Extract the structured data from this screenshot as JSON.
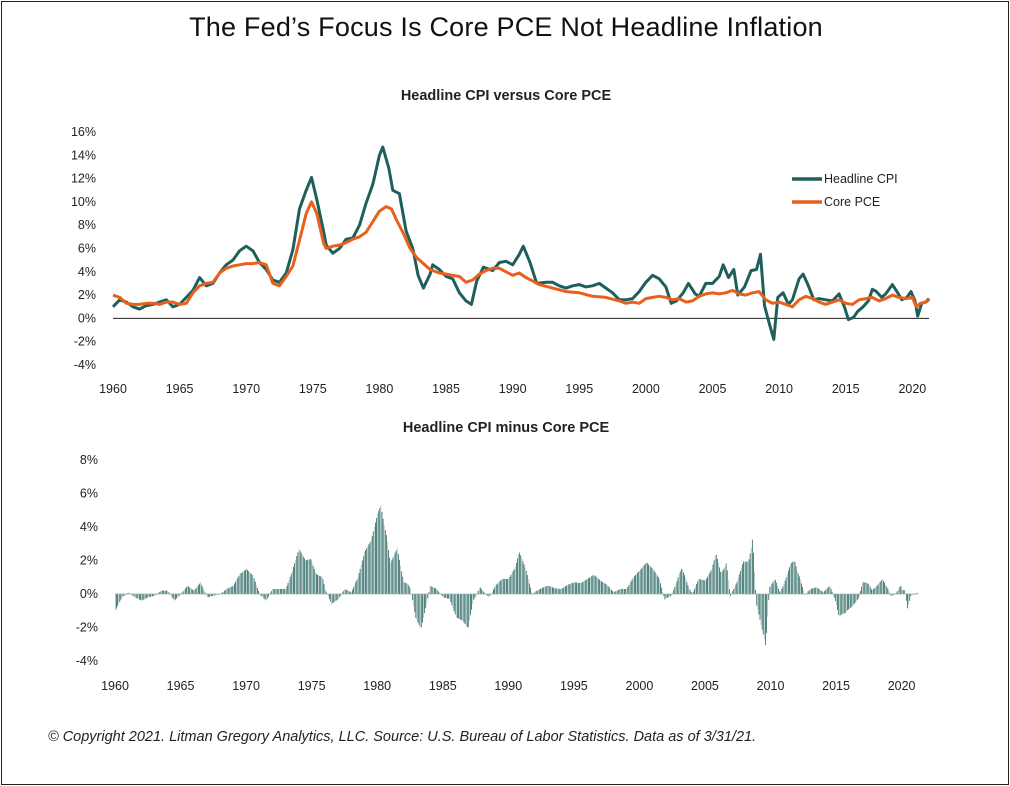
{
  "page": {
    "title": "The Fed’s Focus Is Core PCE Not Headline Inflation",
    "footer": "© Copyright 2021. Litman Gregory Analytics, LLC. Source: U.S. Bureau of Labor Statistics. Data as of 3/31/21."
  },
  "colors": {
    "headline": "#1f5f5b",
    "core": "#e8601c",
    "bars": "#2e6b66",
    "bars_light": "#a9c3c0"
  },
  "chart_data": [
    {
      "type": "line",
      "title": "Headline CPI versus Core PCE",
      "xlabel": "",
      "ylabel": "",
      "xlim": [
        1960,
        2021.25
      ],
      "ylim": [
        -4,
        16
      ],
      "yticks": [
        -4,
        -2,
        0,
        2,
        4,
        6,
        8,
        10,
        12,
        14,
        16
      ],
      "ytick_labels": [
        "-4%",
        "-2%",
        "0%",
        "2%",
        "4%",
        "6%",
        "8%",
        "10%",
        "12%",
        "14%",
        "16%"
      ],
      "xticks": [
        1960,
        1965,
        1970,
        1975,
        1980,
        1985,
        1990,
        1995,
        2000,
        2005,
        2010,
        2015,
        2020
      ],
      "legend_position": "top-right",
      "series": [
        {
          "name": "Headline CPI",
          "points": [
            [
              1960,
              1.0
            ],
            [
              1960.5,
              1.6
            ],
            [
              1961,
              1.4
            ],
            [
              1961.5,
              1.0
            ],
            [
              1962,
              0.8
            ],
            [
              1962.5,
              1.1
            ],
            [
              1963,
              1.2
            ],
            [
              1963.5,
              1.4
            ],
            [
              1964,
              1.6
            ],
            [
              1964.5,
              1.0
            ],
            [
              1965,
              1.2
            ],
            [
              1965.5,
              1.8
            ],
            [
              1966,
              2.4
            ],
            [
              1966.5,
              3.5
            ],
            [
              1967,
              2.8
            ],
            [
              1967.5,
              3.0
            ],
            [
              1968,
              3.9
            ],
            [
              1968.5,
              4.6
            ],
            [
              1969,
              5.0
            ],
            [
              1969.5,
              5.8
            ],
            [
              1970,
              6.2
            ],
            [
              1970.5,
              5.8
            ],
            [
              1971,
              4.8
            ],
            [
              1971.5,
              4.2
            ],
            [
              1972,
              3.3
            ],
            [
              1972.5,
              3.1
            ],
            [
              1973,
              3.9
            ],
            [
              1973.5,
              5.9
            ],
            [
              1974,
              9.4
            ],
            [
              1974.5,
              11.0
            ],
            [
              1974.9,
              12.1
            ],
            [
              1975.3,
              10.2
            ],
            [
              1975.8,
              7.5
            ],
            [
              1976,
              6.3
            ],
            [
              1976.5,
              5.6
            ],
            [
              1977,
              6.0
            ],
            [
              1977.5,
              6.8
            ],
            [
              1978,
              6.9
            ],
            [
              1978.5,
              8.0
            ],
            [
              1979,
              9.9
            ],
            [
              1979.5,
              11.5
            ],
            [
              1980,
              14.0
            ],
            [
              1980.25,
              14.7
            ],
            [
              1980.7,
              12.9
            ],
            [
              1981,
              11.0
            ],
            [
              1981.5,
              10.7
            ],
            [
              1982,
              7.5
            ],
            [
              1982.5,
              6.0
            ],
            [
              1982.9,
              3.7
            ],
            [
              1983.3,
              2.6
            ],
            [
              1983.8,
              3.8
            ],
            [
              1984,
              4.6
            ],
            [
              1984.5,
              4.2
            ],
            [
              1985,
              3.6
            ],
            [
              1985.5,
              3.4
            ],
            [
              1986,
              2.2
            ],
            [
              1986.5,
              1.5
            ],
            [
              1986.9,
              1.2
            ],
            [
              1987.3,
              3.2
            ],
            [
              1987.8,
              4.4
            ],
            [
              1988.5,
              4.1
            ],
            [
              1989,
              4.8
            ],
            [
              1989.5,
              4.9
            ],
            [
              1990,
              4.6
            ],
            [
              1990.5,
              5.5
            ],
            [
              1990.8,
              6.2
            ],
            [
              1991.3,
              4.8
            ],
            [
              1991.8,
              3.0
            ],
            [
              1992.5,
              3.1
            ],
            [
              1993,
              3.1
            ],
            [
              1993.5,
              2.8
            ],
            [
              1994,
              2.6
            ],
            [
              1994.5,
              2.8
            ],
            [
              1995,
              2.9
            ],
            [
              1995.5,
              2.7
            ],
            [
              1996,
              2.8
            ],
            [
              1996.5,
              3.0
            ],
            [
              1997,
              2.6
            ],
            [
              1997.5,
              2.2
            ],
            [
              1998,
              1.6
            ],
            [
              1998.5,
              1.6
            ],
            [
              1999,
              1.7
            ],
            [
              1999.5,
              2.3
            ],
            [
              2000,
              3.1
            ],
            [
              2000.5,
              3.7
            ],
            [
              2001,
              3.4
            ],
            [
              2001.5,
              2.7
            ],
            [
              2001.9,
              1.3
            ],
            [
              2002.3,
              1.5
            ],
            [
              2002.8,
              2.2
            ],
            [
              2003.2,
              3.0
            ],
            [
              2003.7,
              2.1
            ],
            [
              2004,
              1.9
            ],
            [
              2004.5,
              3.0
            ],
            [
              2005,
              3.0
            ],
            [
              2005.5,
              3.6
            ],
            [
              2005.8,
              4.6
            ],
            [
              2006.2,
              3.5
            ],
            [
              2006.6,
              4.2
            ],
            [
              2006.9,
              2.0
            ],
            [
              2007.4,
              2.7
            ],
            [
              2007.9,
              4.1
            ],
            [
              2008.3,
              4.2
            ],
            [
              2008.6,
              5.5
            ],
            [
              2008.9,
              1.1
            ],
            [
              2009.3,
              -0.6
            ],
            [
              2009.6,
              -1.8
            ],
            [
              2009.9,
              1.8
            ],
            [
              2010.3,
              2.2
            ],
            [
              2010.7,
              1.2
            ],
            [
              2011,
              1.6
            ],
            [
              2011.5,
              3.4
            ],
            [
              2011.8,
              3.8
            ],
            [
              2012.2,
              2.8
            ],
            [
              2012.6,
              1.6
            ],
            [
              2013,
              1.7
            ],
            [
              2013.5,
              1.6
            ],
            [
              2014,
              1.5
            ],
            [
              2014.5,
              2.1
            ],
            [
              2014.9,
              1.0
            ],
            [
              2015.2,
              -0.1
            ],
            [
              2015.6,
              0.1
            ],
            [
              2015.9,
              0.6
            ],
            [
              2016.3,
              1.0
            ],
            [
              2016.7,
              1.5
            ],
            [
              2017,
              2.5
            ],
            [
              2017.3,
              2.3
            ],
            [
              2017.7,
              1.8
            ],
            [
              2018,
              2.1
            ],
            [
              2018.5,
              2.9
            ],
            [
              2018.9,
              2.2
            ],
            [
              2019.2,
              1.6
            ],
            [
              2019.6,
              1.8
            ],
            [
              2019.9,
              2.3
            ],
            [
              2020.2,
              1.5
            ],
            [
              2020.4,
              0.2
            ],
            [
              2020.7,
              1.3
            ],
            [
              2021,
              1.4
            ],
            [
              2021.25,
              1.7
            ]
          ]
        },
        {
          "name": "Core PCE",
          "points": [
            [
              1960,
              2.0
            ],
            [
              1960.5,
              1.8
            ],
            [
              1961,
              1.3
            ],
            [
              1961.5,
              1.2
            ],
            [
              1962,
              1.2
            ],
            [
              1962.5,
              1.3
            ],
            [
              1963,
              1.3
            ],
            [
              1963.5,
              1.2
            ],
            [
              1964,
              1.4
            ],
            [
              1964.5,
              1.4
            ],
            [
              1965,
              1.2
            ],
            [
              1965.5,
              1.3
            ],
            [
              1966,
              2.2
            ],
            [
              1966.5,
              2.8
            ],
            [
              1967,
              3.0
            ],
            [
              1967.5,
              3.1
            ],
            [
              1968,
              3.9
            ],
            [
              1968.5,
              4.3
            ],
            [
              1969,
              4.5
            ],
            [
              1969.5,
              4.6
            ],
            [
              1970,
              4.7
            ],
            [
              1970.5,
              4.7
            ],
            [
              1971,
              4.8
            ],
            [
              1971.5,
              4.6
            ],
            [
              1972,
              3.0
            ],
            [
              1972.5,
              2.8
            ],
            [
              1973,
              3.6
            ],
            [
              1973.5,
              4.5
            ],
            [
              1974,
              6.7
            ],
            [
              1974.5,
              9.0
            ],
            [
              1974.9,
              10.0
            ],
            [
              1975.3,
              9.0
            ],
            [
              1975.8,
              6.5
            ],
            [
              1976,
              6.0
            ],
            [
              1976.5,
              6.2
            ],
            [
              1977,
              6.3
            ],
            [
              1977.5,
              6.5
            ],
            [
              1978,
              6.8
            ],
            [
              1978.5,
              7.0
            ],
            [
              1979,
              7.4
            ],
            [
              1979.5,
              8.3
            ],
            [
              1980,
              9.2
            ],
            [
              1980.5,
              9.6
            ],
            [
              1980.9,
              9.4
            ],
            [
              1981.3,
              8.4
            ],
            [
              1981.8,
              7.3
            ],
            [
              1982.3,
              6.0
            ],
            [
              1982.8,
              5.2
            ],
            [
              1983.3,
              4.7
            ],
            [
              1983.8,
              4.2
            ],
            [
              1984.5,
              3.9
            ],
            [
              1985,
              3.8
            ],
            [
              1985.5,
              3.7
            ],
            [
              1986,
              3.6
            ],
            [
              1986.5,
              3.1
            ],
            [
              1987,
              3.3
            ],
            [
              1987.5,
              3.8
            ],
            [
              1988,
              4.1
            ],
            [
              1988.5,
              4.3
            ],
            [
              1989,
              4.3
            ],
            [
              1989.5,
              4.0
            ],
            [
              1990,
              3.7
            ],
            [
              1990.5,
              3.9
            ],
            [
              1991,
              3.5
            ],
            [
              1991.5,
              3.2
            ],
            [
              1992,
              2.9
            ],
            [
              1993,
              2.6
            ],
            [
              1994,
              2.3
            ],
            [
              1995,
              2.2
            ],
            [
              1996,
              1.9
            ],
            [
              1997,
              1.8
            ],
            [
              1998,
              1.5
            ],
            [
              1998.5,
              1.3
            ],
            [
              1999,
              1.4
            ],
            [
              1999.5,
              1.3
            ],
            [
              2000,
              1.7
            ],
            [
              2000.5,
              1.8
            ],
            [
              2001,
              1.9
            ],
            [
              2001.5,
              1.8
            ],
            [
              2002,
              1.6
            ],
            [
              2002.5,
              1.7
            ],
            [
              2003,
              1.4
            ],
            [
              2003.5,
              1.5
            ],
            [
              2004,
              1.9
            ],
            [
              2004.5,
              2.1
            ],
            [
              2005,
              2.2
            ],
            [
              2005.5,
              2.1
            ],
            [
              2006,
              2.2
            ],
            [
              2006.5,
              2.4
            ],
            [
              2007,
              2.1
            ],
            [
              2007.5,
              2.0
            ],
            [
              2008,
              2.2
            ],
            [
              2008.5,
              2.3
            ],
            [
              2009,
              1.6
            ],
            [
              2009.5,
              1.3
            ],
            [
              2010,
              1.4
            ],
            [
              2010.5,
              1.2
            ],
            [
              2011,
              1.0
            ],
            [
              2011.5,
              1.6
            ],
            [
              2012,
              1.9
            ],
            [
              2012.5,
              1.7
            ],
            [
              2013,
              1.4
            ],
            [
              2013.5,
              1.2
            ],
            [
              2014,
              1.4
            ],
            [
              2014.5,
              1.6
            ],
            [
              2015,
              1.3
            ],
            [
              2015.5,
              1.2
            ],
            [
              2016,
              1.6
            ],
            [
              2016.5,
              1.7
            ],
            [
              2017,
              1.8
            ],
            [
              2017.5,
              1.5
            ],
            [
              2018,
              1.7
            ],
            [
              2018.5,
              2.0
            ],
            [
              2019,
              1.8
            ],
            [
              2019.5,
              1.7
            ],
            [
              2020,
              1.8
            ],
            [
              2020.3,
              1.0
            ],
            [
              2020.6,
              1.3
            ],
            [
              2021,
              1.4
            ],
            [
              2021.25,
              1.6
            ]
          ]
        }
      ]
    },
    {
      "type": "bar",
      "title": "Headline CPI minus Core PCE",
      "xlabel": "",
      "ylabel": "",
      "xlim": [
        1960,
        2021.25
      ],
      "ylim": [
        -4,
        8
      ],
      "yticks": [
        -4,
        -2,
        0,
        2,
        4,
        6,
        8
      ],
      "ytick_labels": [
        "-4%",
        "-2%",
        "0%",
        "2%",
        "4%",
        "6%",
        "8%"
      ],
      "xticks": [
        1960,
        1965,
        1970,
        1975,
        1980,
        1985,
        1990,
        1995,
        2000,
        2005,
        2010,
        2015,
        2020
      ],
      "series": [
        {
          "name": "",
          "values": "Headline CPI minus Core PCE, monthly"
        }
      ]
    }
  ]
}
